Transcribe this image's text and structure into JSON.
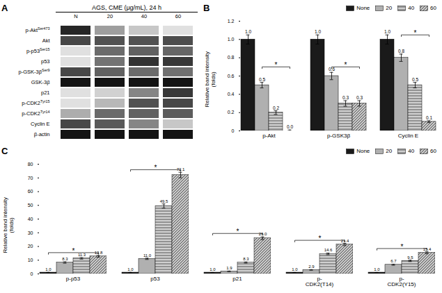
{
  "chart_data": [
    {
      "type": "heatmap",
      "title": "AGS, CME (μg/mL), 24 h",
      "annotations": [
        {
          "text": "A"
        }
      ],
      "categories": [
        "N",
        "20",
        "40",
        "60"
      ],
      "rows": [
        {
          "text": "p-Akt",
          "superscript": "Ser473"
        },
        {
          "text": "Akt"
        },
        {
          "text": "p-p53",
          "superscript": "Ser15"
        },
        {
          "text": "p53"
        },
        {
          "text": "p-GSK-3β",
          "superscript": "Ser9"
        },
        {
          "text": "GSK-3β"
        },
        {
          "text": "p21"
        },
        {
          "text": "p-CDK2",
          "superscript": "Tyr15"
        },
        {
          "text": "p-CDK2",
          "superscript": "Tyr14"
        },
        {
          "text": "Cyclin E"
        },
        {
          "text": "β-actin"
        }
      ],
      "cells": [
        [
          0.15,
          0.62,
          0.78,
          0.88
        ],
        [
          0.28,
          0.32,
          0.32,
          0.3
        ],
        [
          0.88,
          0.42,
          0.38,
          0.4
        ],
        [
          0.88,
          0.45,
          0.2,
          0.22
        ],
        [
          0.28,
          0.38,
          0.42,
          0.44
        ],
        [
          0.08,
          0.08,
          0.08,
          0.08
        ],
        [
          0.88,
          0.82,
          0.52,
          0.22
        ],
        [
          0.88,
          0.72,
          0.32,
          0.28
        ],
        [
          0.68,
          0.42,
          0.38,
          0.36
        ],
        [
          0.28,
          0.35,
          0.52,
          0.78
        ],
        [
          0.08,
          0.08,
          0.08,
          0.08
        ]
      ]
    },
    {
      "type": "bar",
      "annotations": [
        {
          "text": "B"
        },
        {
          "text": "*",
          "category": "p-Akt",
          "from": "20",
          "to": "60",
          "y": 0.7
        },
        {
          "text": "*",
          "category": "p-GSK3β",
          "from": "20",
          "to": "60",
          "y": 0.7
        },
        {
          "text": "*",
          "category": "Cyclin E",
          "from": "20",
          "to": "60",
          "y": 1.05
        }
      ],
      "categories": [
        "p-Akt",
        "p-GSK3β",
        "Cyclin E"
      ],
      "series": [
        {
          "name": "None",
          "color": "#1a1a1a",
          "values": [
            1.0,
            1.0,
            1.0
          ],
          "errors": [
            0.05,
            0.05,
            0.05
          ],
          "value_labels": [
            "1.0",
            "1.0",
            "1.0"
          ]
        },
        {
          "name": "20",
          "color": "#b0b0b0",
          "values": [
            0.5,
            0.6,
            0.8
          ],
          "errors": [
            0.03,
            0.04,
            0.04
          ],
          "value_labels": [
            "0.5",
            "0.6",
            "0.8"
          ]
        },
        {
          "name": "40",
          "color": "#d0d0d0",
          "values": [
            0.2,
            0.3,
            0.5
          ],
          "errors": [
            0.02,
            0.03,
            0.03
          ],
          "value_labels": [
            "0.2",
            "0.3",
            "0.5"
          ]
        },
        {
          "name": "60",
          "color": "#c8c8c8",
          "values": [
            0.0,
            0.3,
            0.1
          ],
          "errors": [
            0.01,
            0.03,
            0.01
          ],
          "value_labels": [
            "0.0",
            "0.3",
            "0.1"
          ]
        }
      ],
      "ylabel": "Relative band intensity\n(folds)",
      "ylim": [
        0,
        1.2
      ],
      "yticks": [
        0,
        0.2,
        0.4,
        0.6,
        0.8,
        {
          "value": 1.0,
          "label": "1.0"
        },
        1.2
      ],
      "legend": "upper right",
      "data_labels": true
    },
    {
      "type": "bar",
      "annotations": [
        {
          "text": "C"
        },
        {
          "text": "*",
          "category": "p-p53",
          "from": "None",
          "to": "60",
          "y": 15.5
        },
        {
          "text": "*",
          "category": "p53",
          "from": "None",
          "to": "60",
          "y": 76.0
        },
        {
          "text": "*",
          "category": "p21",
          "from": "None",
          "to": "60",
          "y": 29.5
        },
        {
          "text": "*",
          "category": "p-\nCDK2(T14)",
          "from": "None",
          "to": "60",
          "y": 24.5
        },
        {
          "text": "*",
          "category": "p-\nCDK2(Y15)",
          "from": "None",
          "to": "60",
          "y": 18.5
        }
      ],
      "categories": [
        "p-p53",
        "p53",
        "p21",
        "p-\nCDK2(T14)",
        "p-\nCDK2(Y15)"
      ],
      "series": [
        {
          "name": "None",
          "color": "#1a1a1a",
          "values": [
            1.0,
            1.0,
            1.0,
            1.0,
            1.0
          ],
          "errors": [
            0.1,
            0.1,
            0.05,
            0.05,
            0.05
          ],
          "value_labels": [
            "1.0",
            "1.0",
            "1.0",
            "1.0",
            "1.0"
          ]
        },
        {
          "name": "20",
          "color": "#b0b0b0",
          "values": [
            8.3,
            11.0,
            1.9,
            2.9,
            6.7
          ],
          "errors": [
            0.5,
            0.5,
            0.2,
            0.2,
            0.4
          ],
          "value_labels": [
            "8.3",
            "11.0",
            "1.9",
            "2.9",
            "6.7"
          ]
        },
        {
          "name": "40",
          "color": "#d0d0d0",
          "values": [
            11.3,
            49.5,
            8.3,
            14.6,
            9.5
          ],
          "errors": [
            0.5,
            1.5,
            0.4,
            0.6,
            0.5
          ],
          "value_labels": [
            "11.3",
            "49.5",
            "8.3",
            "14.6",
            "9.5"
          ]
        },
        {
          "name": "60",
          "color": "#c8c8c8",
          "values": [
            12.8,
            72.1,
            26.0,
            21.4,
            15.4
          ],
          "errors": [
            0.6,
            2.0,
            1.0,
            0.8,
            0.7
          ],
          "value_labels": [
            "12.8",
            "72.1",
            "26.0",
            "21.4",
            "15.4"
          ]
        }
      ],
      "ylabel": "Relative band intensity\n(folds)",
      "ylim": [
        0,
        80
      ],
      "yticks": [
        0,
        10,
        20,
        30,
        40,
        50,
        60,
        70,
        80
      ],
      "legend": "upper right",
      "data_labels": true
    }
  ]
}
